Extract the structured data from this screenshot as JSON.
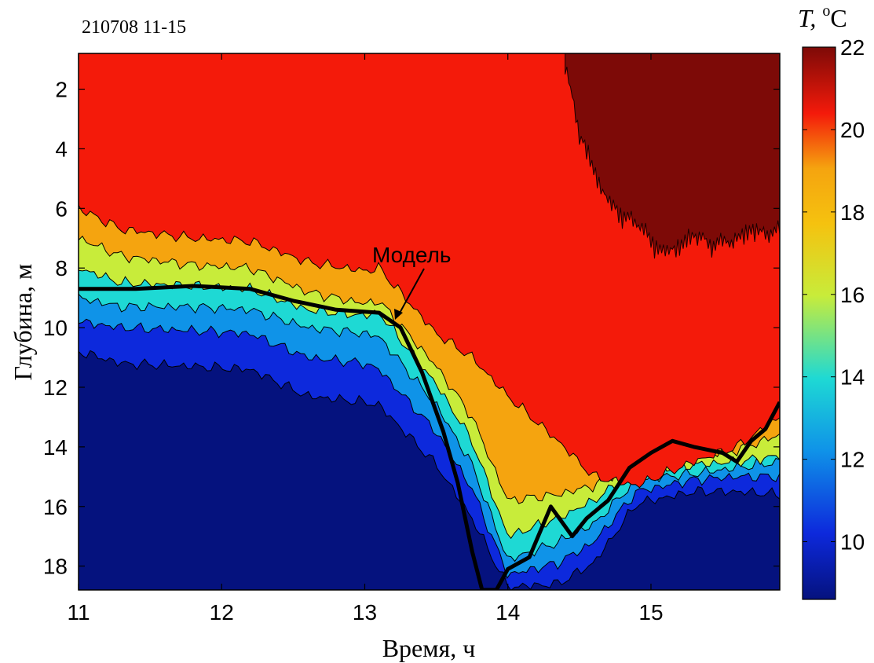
{
  "chart_data": {
    "type": "heatmap",
    "title": "210708 11-15",
    "xlabel": "Время, ч",
    "ylabel": "Глубина, м",
    "xlim": [
      11,
      15.9
    ],
    "ylim": [
      0.8,
      18.8
    ],
    "y_reversed": true,
    "x_ticks": [
      "11",
      "12",
      "13",
      "14",
      "15"
    ],
    "y_ticks": [
      "2",
      "4",
      "6",
      "8",
      "10",
      "12",
      "14",
      "16",
      "18"
    ],
    "colorbar": {
      "label_prefix": "T, ",
      "label_sup": "o",
      "label_suffix": "C",
      "range": [
        8.6,
        22
      ],
      "ticks": [
        "10",
        "12",
        "14",
        "16",
        "18",
        "20",
        "22"
      ]
    },
    "levels": [
      {
        "temp": 20,
        "color": "#f41a0a",
        "boundary": [
          [
            11,
            6.0
          ],
          [
            11.3,
            6.7
          ],
          [
            11.8,
            7.0
          ],
          [
            12.2,
            7.1
          ],
          [
            12.6,
            7.8
          ],
          [
            13.0,
            8.1
          ],
          [
            13.1,
            8.0
          ],
          [
            13.5,
            10.2
          ],
          [
            13.75,
            11.0
          ],
          [
            14.0,
            12.3
          ],
          [
            14.35,
            13.8
          ],
          [
            14.6,
            15.0
          ],
          [
            14.9,
            15.3
          ],
          [
            15.3,
            14.5
          ],
          [
            15.6,
            14.0
          ],
          [
            15.9,
            13.0
          ]
        ]
      },
      {
        "temp": 18,
        "color": "#f5a40f",
        "boundary": [
          [
            11,
            7.0
          ],
          [
            11.3,
            7.6
          ],
          [
            11.8,
            7.9
          ],
          [
            12.2,
            8.0
          ],
          [
            12.6,
            8.8
          ],
          [
            13.0,
            9.2
          ],
          [
            13.1,
            9.1
          ],
          [
            13.5,
            11.3
          ],
          [
            13.75,
            13.0
          ],
          [
            14.0,
            15.8
          ],
          [
            14.35,
            15.6
          ],
          [
            14.6,
            15.3
          ],
          [
            14.9,
            14.5
          ],
          [
            15.3,
            14.3
          ],
          [
            15.6,
            14.1
          ],
          [
            15.9,
            13.6
          ]
        ]
      },
      {
        "temp": 16,
        "color": "#c8ec3a",
        "boundary": [
          [
            11,
            8.0
          ],
          [
            11.3,
            8.5
          ],
          [
            11.8,
            8.6
          ],
          [
            12.2,
            8.7
          ],
          [
            12.6,
            9.4
          ],
          [
            13.0,
            9.6
          ],
          [
            13.1,
            9.5
          ],
          [
            13.5,
            11.9
          ],
          [
            13.75,
            13.8
          ],
          [
            14.0,
            17.0
          ],
          [
            14.35,
            16.4
          ],
          [
            14.6,
            15.8
          ],
          [
            14.9,
            14.8
          ],
          [
            15.3,
            14.6
          ],
          [
            15.6,
            14.5
          ],
          [
            15.9,
            14.3
          ]
        ]
      },
      {
        "temp": 14,
        "color": "#1ed9d4",
        "boundary": [
          [
            11,
            9.0
          ],
          [
            11.3,
            9.3
          ],
          [
            11.8,
            9.3
          ],
          [
            12.2,
            9.4
          ],
          [
            12.6,
            10.0
          ],
          [
            13.0,
            10.2
          ],
          [
            13.1,
            10.3
          ],
          [
            13.5,
            12.6
          ],
          [
            13.75,
            14.6
          ],
          [
            14.0,
            17.8
          ],
          [
            14.35,
            17.2
          ],
          [
            14.6,
            16.6
          ],
          [
            14.9,
            15.1
          ],
          [
            15.3,
            14.9
          ],
          [
            15.6,
            14.7
          ],
          [
            15.9,
            14.5
          ]
        ]
      },
      {
        "temp": 12,
        "color": "#0f93e8",
        "boundary": [
          [
            11,
            9.8
          ],
          [
            11.3,
            10.0
          ],
          [
            11.8,
            10.1
          ],
          [
            12.2,
            10.2
          ],
          [
            12.6,
            11.0
          ],
          [
            13.0,
            11.2
          ],
          [
            13.1,
            11.4
          ],
          [
            13.5,
            13.5
          ],
          [
            13.75,
            15.4
          ],
          [
            14.0,
            18.3
          ],
          [
            14.35,
            17.9
          ],
          [
            14.6,
            17.2
          ],
          [
            14.9,
            15.5
          ],
          [
            15.3,
            15.1
          ],
          [
            15.6,
            15.0
          ],
          [
            15.9,
            15.0
          ]
        ]
      },
      {
        "temp": 10,
        "color": "#0d29dc",
        "boundary": [
          [
            11,
            10.8
          ],
          [
            11.3,
            11.2
          ],
          [
            11.8,
            11.3
          ],
          [
            12.2,
            11.4
          ],
          [
            12.6,
            12.3
          ],
          [
            13.0,
            12.5
          ],
          [
            13.1,
            12.6
          ],
          [
            13.5,
            14.6
          ],
          [
            13.75,
            16.4
          ],
          [
            14.0,
            18.7
          ],
          [
            14.35,
            18.6
          ],
          [
            14.6,
            17.9
          ],
          [
            14.9,
            15.9
          ],
          [
            15.3,
            15.5
          ],
          [
            15.6,
            15.5
          ],
          [
            15.9,
            15.6
          ]
        ]
      }
    ],
    "background_color": "#05127e",
    "warm_layer": {
      "temp": 22,
      "color": "#7d0a07",
      "x_start": 14.4,
      "boundary": [
        [
          14.4,
          1.0
        ],
        [
          14.5,
          3.5
        ],
        [
          14.7,
          5.8
        ],
        [
          14.9,
          6.5
        ],
        [
          15.1,
          7.5
        ],
        [
          15.3,
          6.9
        ],
        [
          15.5,
          7.2
        ],
        [
          15.7,
          6.7
        ],
        [
          15.9,
          6.8
        ]
      ]
    },
    "model_line": {
      "label": "Модель",
      "points": [
        [
          11.0,
          8.7
        ],
        [
          11.4,
          8.7
        ],
        [
          11.8,
          8.6
        ],
        [
          12.2,
          8.7
        ],
        [
          12.5,
          9.1
        ],
        [
          12.8,
          9.4
        ],
        [
          13.1,
          9.5
        ],
        [
          13.25,
          10.0
        ],
        [
          13.4,
          11.5
        ],
        [
          13.55,
          13.5
        ],
        [
          13.65,
          15.2
        ],
        [
          13.75,
          17.5
        ],
        [
          13.82,
          18.8
        ],
        [
          13.92,
          18.8
        ],
        [
          14.0,
          18.1
        ],
        [
          14.15,
          17.7
        ],
        [
          14.3,
          16.0
        ],
        [
          14.45,
          17.0
        ],
        [
          14.55,
          16.4
        ],
        [
          14.7,
          15.8
        ],
        [
          14.85,
          14.7
        ],
        [
          15.0,
          14.2
        ],
        [
          15.15,
          13.8
        ],
        [
          15.3,
          14.0
        ],
        [
          15.5,
          14.2
        ],
        [
          15.6,
          14.5
        ],
        [
          15.7,
          13.8
        ],
        [
          15.8,
          13.4
        ],
        [
          15.9,
          12.5
        ]
      ]
    }
  }
}
